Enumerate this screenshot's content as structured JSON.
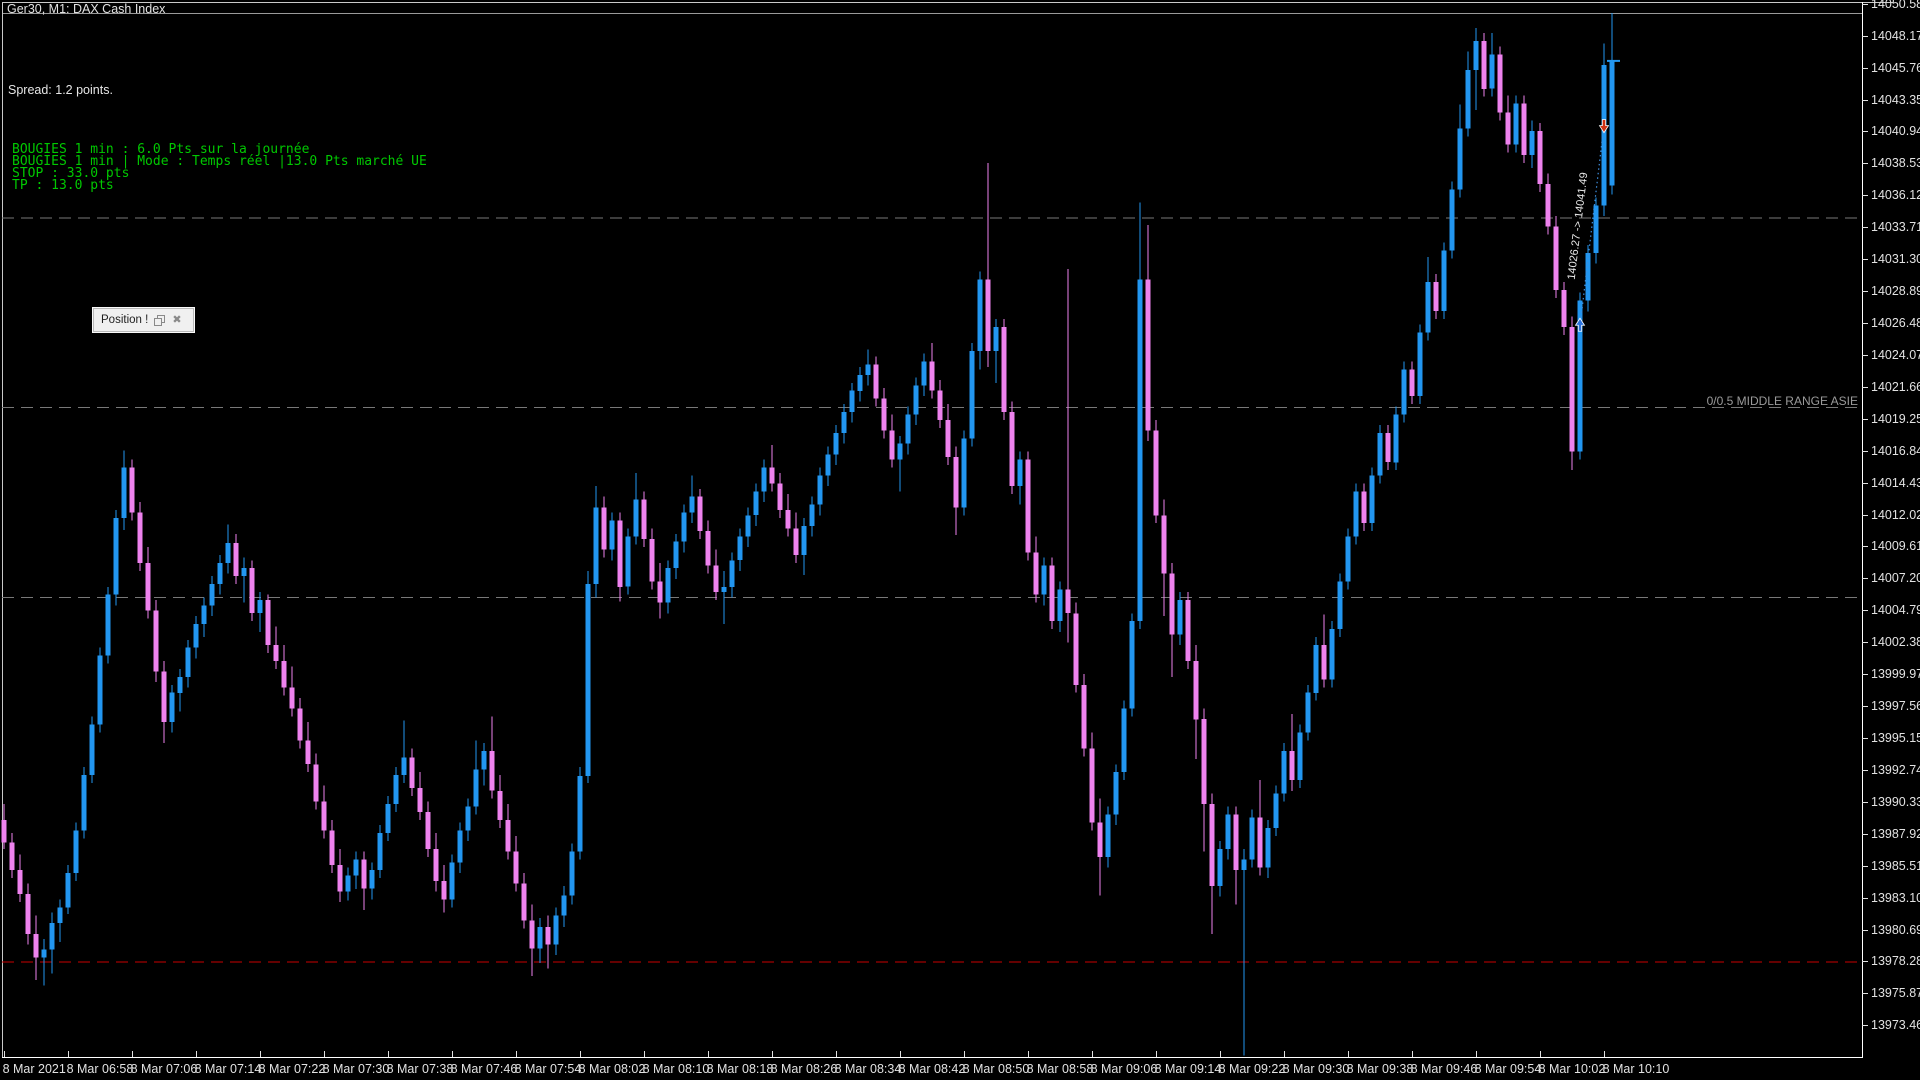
{
  "window": {
    "title": "Ger30, M1: DAX Cash Index"
  },
  "overlays": {
    "spread_label": "Spread: 1.2 points.",
    "indicator_lines": [
      "BOUGIES 1 min : 6.0 Pts sur la journée",
      "BOUGIES 1 min | Mode : Temps réel |13.0 Pts marché UE",
      "STOP : 33.0 pts",
      "TP : 13.0 pts"
    ],
    "range_label": "0/0.5 MIDDLE RANGE ASIE"
  },
  "dialog": {
    "title": "Position !",
    "restore_icon": "restore",
    "close_icon": "close"
  },
  "trade": {
    "label": "14026.27 -> 14041.49",
    "entry_price": 14026.27,
    "exit_price": 14041.49,
    "entry_bar": 197,
    "exit_bar": 200
  },
  "colors": {
    "background": "#000000",
    "bull": "#2296F0",
    "bear": "#EE82EE",
    "frame": "#c9c9c9",
    "axis_text": "#e2e2e2",
    "indicator_green": "#00c800",
    "grid": "#787878",
    "open_range_red": "#c80000",
    "entry_arrow": "#2a72de",
    "exit_arrow": "#d03214",
    "trade_line": "#3e8ede",
    "last_tick": "#2296F0",
    "trade_text": "#e8e8e8"
  },
  "chart_data": {
    "type": "candlestick",
    "title": "Ger30, M1: DAX Cash Index",
    "timeframe_minutes": 1,
    "ylim": [
      13971.1,
      14050.9
    ],
    "x_start": 4,
    "x_step": 8,
    "grid": false,
    "last_price": 14046.3,
    "price_axis_labels": [
      "14050.58",
      "14048.17",
      "14045.76",
      "14043.35",
      "14040.94",
      "14038.53",
      "14036.12",
      "14033.71",
      "14031.30",
      "14028.89",
      "14026.48",
      "14024.07",
      "14021.66",
      "14019.25",
      "14016.84",
      "14014.43",
      "14012.02",
      "14009.61",
      "14007.20",
      "14004.79",
      "14002.38",
      "13999.97",
      "13997.56",
      "13995.15",
      "13992.74",
      "13990.33",
      "13987.92",
      "13985.51",
      "13983.10",
      "13980.69",
      "13978.28",
      "13975.87",
      "13973.46"
    ],
    "time_axis_labels": [
      "8 Mar 2021",
      "8 Mar 06:58",
      "8 Mar 07:06",
      "8 Mar 07:14",
      "8 Mar 07:22",
      "8 Mar 07:30",
      "8 Mar 07:38",
      "8 Mar 07:46",
      "8 Mar 07:54",
      "8 Mar 08:02",
      "8 Mar 08:10",
      "8 Mar 08:18",
      "8 Mar 08:26",
      "8 Mar 08:34",
      "8 Mar 08:42",
      "8 Mar 08:50",
      "8 Mar 08:58",
      "8 Mar 09:06",
      "8 Mar 09:14",
      "8 Mar 09:22",
      "8 Mar 09:30",
      "8 Mar 09:38",
      "8 Mar 09:46",
      "8 Mar 09:54",
      "8 Mar 10:02",
      "8 Mar 10:10"
    ],
    "levels": [
      {
        "price": 14034.44,
        "color": "#787878",
        "style": "dashed",
        "label": ""
      },
      {
        "price": 14020.13,
        "color": "#787878",
        "style": "dashed",
        "label": "0/0.5 MIDDLE RANGE ASIE"
      },
      {
        "price": 14005.79,
        "color": "#787878",
        "style": "dashed",
        "label": ""
      },
      {
        "price": 13978.28,
        "color": "#c80000",
        "style": "dashed",
        "label": ""
      }
    ],
    "candles": [
      [
        13989.0,
        13990.2,
        13986.8,
        13987.3
      ],
      [
        13987.3,
        13988.0,
        13984.6,
        13985.2
      ],
      [
        13985.2,
        13986.4,
        13982.8,
        13983.4
      ],
      [
        13983.4,
        13984.2,
        13979.6,
        13980.4
      ],
      [
        13980.4,
        13981.8,
        13976.9,
        13978.6
      ],
      [
        13978.6,
        13980.0,
        13976.5,
        13979.2
      ],
      [
        13979.2,
        13982.0,
        13977.4,
        13981.2
      ],
      [
        13981.2,
        13983.0,
        13979.8,
        13982.4
      ],
      [
        13982.4,
        13985.6,
        13981.9,
        13985.0
      ],
      [
        13985.0,
        13988.8,
        13984.4,
        13988.2
      ],
      [
        13988.2,
        13993.0,
        13987.6,
        13992.4
      ],
      [
        13992.4,
        13996.8,
        13991.8,
        13996.2
      ],
      [
        13996.2,
        14002.0,
        13995.6,
        14001.4
      ],
      [
        14001.4,
        14006.6,
        14000.8,
        14006.0
      ],
      [
        14006.0,
        14012.4,
        14005.2,
        14011.8
      ],
      [
        14011.8,
        14016.9,
        14010.9,
        14015.6
      ],
      [
        14015.6,
        14016.2,
        14011.6,
        14012.2
      ],
      [
        14012.2,
        14013.0,
        14007.8,
        14008.4
      ],
      [
        14008.4,
        14009.6,
        14004.2,
        14004.8
      ],
      [
        14004.8,
        14005.6,
        13999.4,
        14000.2
      ],
      [
        14000.2,
        14001.0,
        13994.8,
        13996.4
      ],
      [
        13996.4,
        13999.2,
        13995.6,
        13998.6
      ],
      [
        13998.6,
        14000.4,
        13997.2,
        13999.8
      ],
      [
        13999.8,
        14002.6,
        13999.0,
        14002.0
      ],
      [
        14002.0,
        14004.4,
        14001.2,
        14003.8
      ],
      [
        14003.8,
        14005.8,
        14002.8,
        14005.2
      ],
      [
        14005.2,
        14007.4,
        14004.4,
        14006.8
      ],
      [
        14006.8,
        14009.0,
        14006.0,
        14008.4
      ],
      [
        14008.4,
        14011.3,
        14007.6,
        14009.9
      ],
      [
        14009.9,
        14010.6,
        14006.8,
        14007.4
      ],
      [
        14007.4,
        14008.8,
        14005.4,
        14008.0
      ],
      [
        14008.0,
        14008.6,
        14004.0,
        14004.6
      ],
      [
        14004.6,
        14006.2,
        14003.2,
        14005.6
      ],
      [
        14005.6,
        14006.0,
        14001.6,
        14002.2
      ],
      [
        14002.2,
        14003.6,
        14000.4,
        14001.0
      ],
      [
        14001.0,
        14002.2,
        13998.4,
        13999.0
      ],
      [
        13999.0,
        14000.6,
        13996.8,
        13997.4
      ],
      [
        13997.4,
        13998.2,
        13994.4,
        13995.0
      ],
      [
        13995.0,
        13996.4,
        13992.6,
        13993.2
      ],
      [
        13993.2,
        13994.0,
        13989.8,
        13990.4
      ],
      [
        13990.4,
        13991.6,
        13987.6,
        13988.2
      ],
      [
        13988.2,
        13989.0,
        13985.0,
        13985.6
      ],
      [
        13985.6,
        13986.8,
        13982.8,
        13983.6
      ],
      [
        13983.6,
        13985.4,
        13982.9,
        13984.8
      ],
      [
        13984.8,
        13986.6,
        13983.8,
        13986.0
      ],
      [
        13986.0,
        13986.6,
        13982.2,
        13983.8
      ],
      [
        13983.8,
        13985.8,
        13983.0,
        13985.2
      ],
      [
        13985.2,
        13988.6,
        13984.6,
        13988.0
      ],
      [
        13988.0,
        13990.8,
        13987.4,
        13990.2
      ],
      [
        13990.2,
        13993.0,
        13989.6,
        13992.4
      ],
      [
        13992.4,
        13996.5,
        13991.8,
        13993.7
      ],
      [
        13993.7,
        13994.4,
        13990.8,
        13991.4
      ],
      [
        13991.4,
        13992.6,
        13989.0,
        13989.6
      ],
      [
        13989.6,
        13990.4,
        13986.2,
        13986.8
      ],
      [
        13986.8,
        13988.0,
        13983.6,
        13984.4
      ],
      [
        13984.4,
        13985.6,
        13982.0,
        13983.0
      ],
      [
        13983.0,
        13986.4,
        13982.4,
        13985.8
      ],
      [
        13985.8,
        13988.8,
        13985.0,
        13988.2
      ],
      [
        13988.2,
        13990.6,
        13987.4,
        13990.0
      ],
      [
        13990.0,
        13995.0,
        13989.4,
        13992.8
      ],
      [
        13992.8,
        13994.8,
        13991.6,
        13994.2
      ],
      [
        13994.2,
        13996.8,
        13990.6,
        13991.2
      ],
      [
        13991.2,
        13992.4,
        13988.4,
        13989.0
      ],
      [
        13989.0,
        13990.2,
        13986.0,
        13986.6
      ],
      [
        13986.6,
        13987.8,
        13983.6,
        13984.2
      ],
      [
        13984.2,
        13985.0,
        13980.8,
        13981.4
      ],
      [
        13981.4,
        13982.6,
        13977.2,
        13979.3
      ],
      [
        13979.3,
        13981.6,
        13978.2,
        13980.9
      ],
      [
        13980.9,
        13981.8,
        13977.8,
        13979.6
      ],
      [
        13979.6,
        13982.4,
        13978.8,
        13981.8
      ],
      [
        13981.8,
        13984.0,
        13980.9,
        13983.3
      ],
      [
        13983.3,
        13987.2,
        13982.6,
        13986.6
      ],
      [
        13986.6,
        13993.0,
        13986.0,
        13992.3
      ],
      [
        13992.3,
        14007.8,
        13991.8,
        14006.8
      ],
      [
        14006.8,
        14014.2,
        14005.8,
        14012.6
      ],
      [
        14012.6,
        14013.4,
        14008.8,
        14009.4
      ],
      [
        14009.4,
        14012.2,
        14008.6,
        14011.6
      ],
      [
        14011.6,
        14012.2,
        14005.5,
        14006.6
      ],
      [
        14006.6,
        14011.0,
        14006.0,
        14010.4
      ],
      [
        14010.4,
        14015.2,
        14009.8,
        14013.2
      ],
      [
        14013.2,
        14013.8,
        14009.6,
        14010.2
      ],
      [
        14010.2,
        14011.0,
        14006.4,
        14007.0
      ],
      [
        14007.0,
        14008.4,
        14004.2,
        14005.4
      ],
      [
        14005.4,
        14008.6,
        14004.6,
        14008.0
      ],
      [
        14008.0,
        14010.6,
        14007.2,
        14010.0
      ],
      [
        14010.0,
        14012.8,
        14009.2,
        14012.2
      ],
      [
        14012.2,
        14015.0,
        14011.4,
        14013.4
      ],
      [
        14013.4,
        14014.0,
        14010.2,
        14010.8
      ],
      [
        14010.8,
        14011.6,
        14007.6,
        14008.2
      ],
      [
        14008.2,
        14009.4,
        14005.6,
        14006.2
      ],
      [
        14006.2,
        14007.8,
        14003.8,
        14006.6
      ],
      [
        14006.6,
        14009.2,
        14005.8,
        14008.6
      ],
      [
        14008.6,
        14011.0,
        14007.8,
        14010.4
      ],
      [
        14010.4,
        14012.6,
        14009.6,
        14012.0
      ],
      [
        14012.0,
        14014.4,
        14011.2,
        14013.8
      ],
      [
        14013.8,
        14016.2,
        14013.0,
        14015.6
      ],
      [
        14015.6,
        14017.3,
        14013.8,
        14014.4
      ],
      [
        14014.4,
        14015.2,
        14011.8,
        14012.4
      ],
      [
        14012.4,
        14013.6,
        14010.4,
        14011.0
      ],
      [
        14011.0,
        14012.2,
        14008.4,
        14009.0
      ],
      [
        14009.0,
        14011.8,
        14007.5,
        14011.2
      ],
      [
        14011.2,
        14013.4,
        14010.4,
        14012.8
      ],
      [
        14012.8,
        14015.6,
        14012.0,
        14015.0
      ],
      [
        14015.0,
        14017.2,
        14014.2,
        14016.6
      ],
      [
        14016.6,
        14018.8,
        14015.8,
        14018.2
      ],
      [
        14018.2,
        14020.4,
        14017.4,
        14019.8
      ],
      [
        14019.8,
        14022.0,
        14019.0,
        14021.4
      ],
      [
        14021.4,
        14023.2,
        14020.6,
        14022.6
      ],
      [
        14022.6,
        14024.5,
        14021.8,
        14023.4
      ],
      [
        14023.4,
        14024.0,
        14020.2,
        14020.8
      ],
      [
        14020.8,
        14021.6,
        14017.8,
        14018.4
      ],
      [
        14018.4,
        14019.6,
        14015.6,
        14016.2
      ],
      [
        14016.2,
        14018.0,
        14013.8,
        14017.4
      ],
      [
        14017.4,
        14020.2,
        14016.6,
        14019.6
      ],
      [
        14019.6,
        14022.4,
        14018.8,
        14021.8
      ],
      [
        14021.8,
        14024.2,
        14021.0,
        14023.6
      ],
      [
        14023.6,
        14025.0,
        14020.8,
        14021.4
      ],
      [
        14021.4,
        14022.2,
        14018.6,
        14019.2
      ],
      [
        14019.2,
        14020.4,
        14015.8,
        14016.4
      ],
      [
        14016.4,
        14017.2,
        14010.5,
        14012.6
      ],
      [
        14012.6,
        14018.4,
        14012.0,
        14017.8
      ],
      [
        14017.8,
        14025.0,
        14017.2,
        14024.4
      ],
      [
        14024.4,
        14030.4,
        14023.0,
        14029.8
      ],
      [
        14029.8,
        14038.6,
        14023.2,
        14024.4
      ],
      [
        14024.4,
        14026.8,
        14022.0,
        14026.2
      ],
      [
        14026.2,
        14026.8,
        14019.2,
        14019.8
      ],
      [
        14019.8,
        14020.6,
        14013.6,
        14014.2
      ],
      [
        14014.2,
        14016.8,
        14012.8,
        14016.2
      ],
      [
        14016.2,
        14016.8,
        14008.6,
        14009.2
      ],
      [
        14009.2,
        14010.4,
        14005.4,
        14006.0
      ],
      [
        14006.0,
        14008.8,
        14005.2,
        14008.2
      ],
      [
        14008.2,
        14008.8,
        14003.4,
        14004.0
      ],
      [
        14004.0,
        14007.0,
        14003.2,
        14006.4
      ],
      [
        14006.4,
        14030.6,
        14002.4,
        14004.6
      ],
      [
        14004.6,
        14005.4,
        13998.6,
        13999.2
      ],
      [
        13999.2,
        14000.0,
        13993.8,
        13994.4
      ],
      [
        13994.4,
        13995.6,
        13988.2,
        13988.8
      ],
      [
        13988.8,
        13990.6,
        13983.3,
        13986.2
      ],
      [
        13986.2,
        13990.0,
        13985.4,
        13989.4
      ],
      [
        13989.4,
        13993.2,
        13988.6,
        13992.6
      ],
      [
        13992.6,
        13998.0,
        13992.0,
        13997.4
      ],
      [
        13997.4,
        14004.6,
        13996.8,
        14004.0
      ],
      [
        14004.0,
        14035.6,
        14003.4,
        14029.8
      ],
      [
        14029.8,
        14033.9,
        14017.6,
        14018.4
      ],
      [
        14018.4,
        14019.2,
        14011.4,
        14012.0
      ],
      [
        14012.0,
        14013.2,
        14004.4,
        14007.6
      ],
      [
        14007.6,
        14008.4,
        13999.8,
        14003.0
      ],
      [
        14003.0,
        14006.2,
        14002.2,
        14005.6
      ],
      [
        14005.6,
        14006.2,
        14000.4,
        14001.0
      ],
      [
        14001.0,
        14002.2,
        13993.6,
        13996.6
      ],
      [
        13996.6,
        13997.4,
        13986.6,
        13990.2
      ],
      [
        13990.2,
        13991.0,
        13980.4,
        13984.0
      ],
      [
        13984.0,
        13987.4,
        13983.2,
        13986.8
      ],
      [
        13986.8,
        13990.0,
        13986.0,
        13989.4
      ],
      [
        13989.4,
        13990.0,
        13982.6,
        13985.2
      ],
      [
        13985.2,
        13986.8,
        13971.2,
        13986.0
      ],
      [
        13986.0,
        13989.8,
        13985.4,
        13989.2
      ],
      [
        13989.2,
        13992.0,
        13984.8,
        13985.4
      ],
      [
        13985.4,
        13989.0,
        13984.6,
        13988.4
      ],
      [
        13988.4,
        13991.6,
        13987.8,
        13991.0
      ],
      [
        13991.0,
        13994.8,
        13990.4,
        13994.2
      ],
      [
        13994.2,
        13997.0,
        13991.2,
        13992.0
      ],
      [
        13992.0,
        13996.2,
        13991.4,
        13995.6
      ],
      [
        13995.6,
        13999.2,
        13995.0,
        13998.6
      ],
      [
        13998.6,
        14002.8,
        13998.0,
        14002.2
      ],
      [
        14002.2,
        14004.5,
        13999.0,
        13999.6
      ],
      [
        13999.6,
        14004.0,
        13999.0,
        14003.4
      ],
      [
        14003.4,
        14007.6,
        14002.8,
        14007.0
      ],
      [
        14007.0,
        14011.0,
        14006.4,
        14010.4
      ],
      [
        14010.4,
        14014.4,
        14009.8,
        14013.8
      ],
      [
        14013.8,
        14014.4,
        14010.8,
        14011.4
      ],
      [
        14011.4,
        14015.6,
        14010.8,
        14015.0
      ],
      [
        14015.0,
        14018.8,
        14014.4,
        14018.2
      ],
      [
        14018.2,
        14018.8,
        14015.4,
        14016.0
      ],
      [
        14016.0,
        14020.2,
        14015.4,
        14019.6
      ],
      [
        14019.6,
        14023.6,
        14019.0,
        14023.0
      ],
      [
        14023.0,
        14023.6,
        14020.4,
        14021.0
      ],
      [
        14021.0,
        14026.4,
        14020.4,
        14025.8
      ],
      [
        14025.8,
        14031.5,
        14025.2,
        14029.6
      ],
      [
        14029.6,
        14030.2,
        14026.8,
        14027.4
      ],
      [
        14027.4,
        14032.6,
        14026.8,
        14032.0
      ],
      [
        14032.0,
        14037.2,
        14031.4,
        14036.6
      ],
      [
        14036.6,
        14043.0,
        14036.0,
        14041.2
      ],
      [
        14041.2,
        14047.0,
        14040.6,
        14045.6
      ],
      [
        14045.6,
        14048.8,
        14042.6,
        14047.8
      ],
      [
        14047.8,
        14048.4,
        14043.6,
        14044.2
      ],
      [
        14044.2,
        14048.4,
        14043.6,
        14046.8
      ],
      [
        14046.8,
        14047.4,
        14041.8,
        14042.4
      ],
      [
        14042.4,
        14043.7,
        14039.4,
        14040.0
      ],
      [
        14040.0,
        14043.7,
        14039.4,
        14043.1
      ],
      [
        14043.1,
        14043.7,
        14038.6,
        14039.2
      ],
      [
        14039.2,
        14041.8,
        14038.2,
        14041.0
      ],
      [
        14041.0,
        14041.6,
        14036.4,
        14037.0
      ],
      [
        14037.0,
        14037.8,
        14033.2,
        14033.8
      ],
      [
        14033.8,
        14034.6,
        14028.4,
        14029.0
      ],
      [
        14029.0,
        14029.6,
        14025.6,
        14026.2
      ],
      [
        14026.2,
        14027.0,
        14015.4,
        14016.8
      ],
      [
        14016.8,
        14028.8,
        14016.2,
        14028.2
      ],
      [
        14028.2,
        14032.4,
        14027.4,
        14031.8
      ],
      [
        14031.8,
        14036.0,
        14031.0,
        14035.4
      ],
      [
        14035.4,
        14047.6,
        14034.6,
        14046.0
      ],
      [
        14036.9,
        14049.9,
        14036.2,
        14046.3
      ]
    ]
  }
}
